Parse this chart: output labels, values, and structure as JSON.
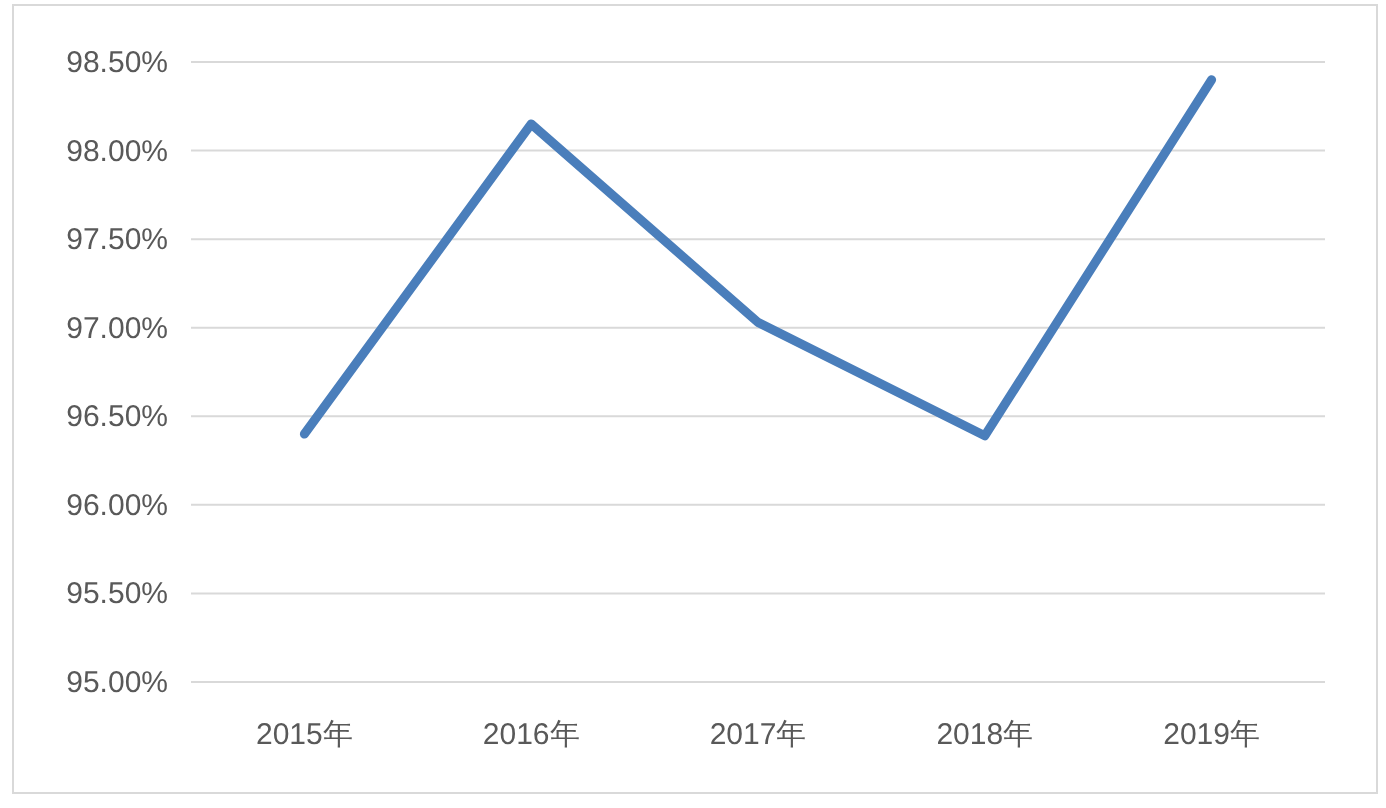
{
  "chart_data": {
    "type": "line",
    "categories": [
      "2015年",
      "2016年",
      "2017年",
      "2018年",
      "2019年"
    ],
    "series": [
      {
        "color": "#4a7ebb",
        "values": [
          96.4,
          98.15,
          97.03,
          96.39,
          98.4
        ]
      }
    ],
    "ylim": [
      95,
      98.5
    ],
    "yticks": [
      {
        "value": 95,
        "label": "95.00%"
      },
      {
        "value": 95.5,
        "label": "95.50%"
      },
      {
        "value": 96,
        "label": "96.00%"
      },
      {
        "value": 96.5,
        "label": "96.50%"
      },
      {
        "value": 97,
        "label": "97.00%"
      },
      {
        "value": 97.5,
        "label": "97.50%"
      },
      {
        "value": 98,
        "label": "98.00%"
      },
      {
        "value": 98.5,
        "label": "98.50%"
      }
    ],
    "grid": "y",
    "marker": "none",
    "line_style": "solid"
  }
}
